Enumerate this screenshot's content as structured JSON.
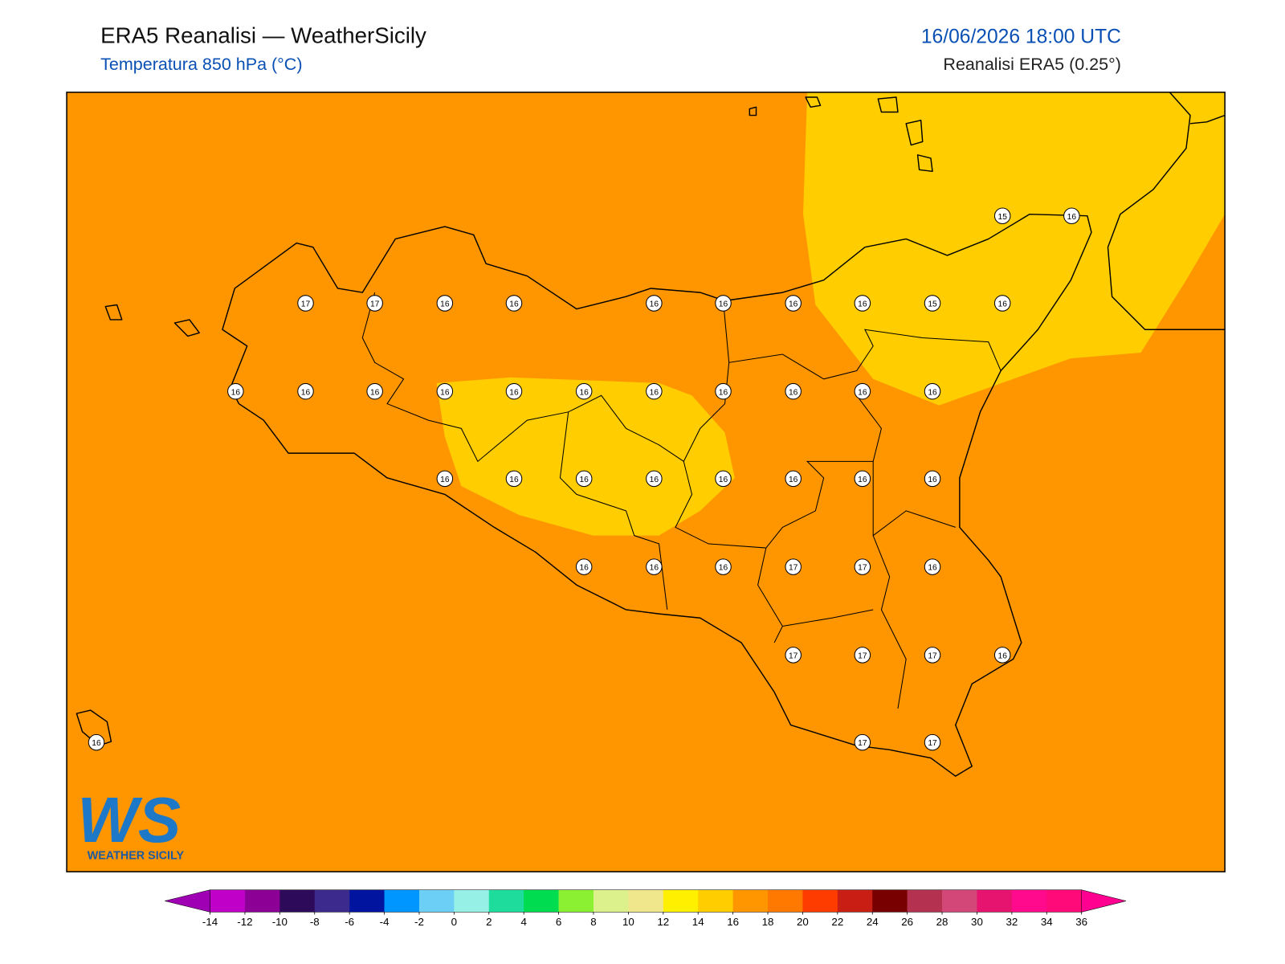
{
  "header": {
    "title": "ERA5 Reanalisi — WeatherSicily",
    "subtitle": "Temperatura 850 hPa (°C)",
    "valid_time": "16/06/2026 18:00 UTC",
    "source": "Reanalisi ERA5 (0.25°)"
  },
  "stations": [
    15,
    16,
    17,
    17,
    16,
    16,
    16,
    16,
    16,
    16,
    15,
    16,
    16,
    16,
    16,
    16,
    16,
    16,
    16,
    16,
    16,
    16,
    16,
    16,
    16,
    16,
    16,
    16,
    16,
    16,
    16,
    16,
    16,
    16,
    17,
    17,
    16,
    17,
    17,
    17,
    16,
    16,
    17,
    17
  ],
  "colorbar": {
    "ticks": [
      -14,
      -12,
      -10,
      -8,
      -6,
      -4,
      -2,
      0,
      2,
      4,
      6,
      8,
      10,
      12,
      14,
      16,
      18,
      20,
      22,
      24,
      26,
      28,
      30,
      32,
      34,
      36
    ],
    "colors": [
      "#c000c8",
      "#8c0096",
      "#2e0a5a",
      "#3c2a8c",
      "#0014a0",
      "#0096ff",
      "#6ccff6",
      "#96f0e6",
      "#1edc9b",
      "#00dc50",
      "#8cf032",
      "#dcf08c",
      "#f0e68c",
      "#fff000",
      "#ffcd00",
      "#ff9600",
      "#ff7800",
      "#ff3c00",
      "#c81e14",
      "#780000",
      "#b43250",
      "#d24678",
      "#e6146e",
      "#ff0a8c",
      "#ff0a78"
    ],
    "under": "#a000b4",
    "over": "#ff0090"
  },
  "logo": {
    "mark": "WS",
    "text": "WEATHER SICILY"
  }
}
